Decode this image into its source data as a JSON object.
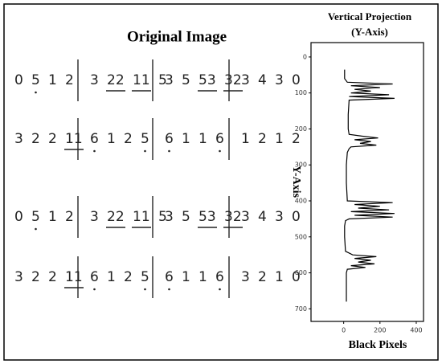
{
  "figure_title": "Original Image",
  "notation": {
    "rows": [
      [
        [
          {
            "t": "0"
          },
          {
            "t": "5",
            "dot": true
          },
          {
            "t": "1"
          },
          {
            "t": "2"
          }
        ],
        [
          {
            "t": "3"
          },
          {
            "t": "22",
            "u": true
          },
          {
            "t": "11",
            "u": true
          },
          {
            "t": "5"
          }
        ],
        [
          {
            "t": "3"
          },
          {
            "t": "5"
          },
          {
            "t": "53",
            "u": true
          },
          {
            "t": "32",
            "u": true
          }
        ],
        [
          {
            "t": "3"
          },
          {
            "t": "4"
          },
          {
            "t": "3"
          },
          {
            "t": "0"
          }
        ]
      ],
      [
        [
          {
            "t": "3"
          },
          {
            "t": "2"
          },
          {
            "t": "2"
          },
          {
            "t": "11",
            "u": true
          }
        ],
        [
          {
            "t": "6",
            "dot": true
          },
          {
            "t": "1"
          },
          {
            "t": "2"
          },
          {
            "t": "5",
            "dot": true
          }
        ],
        [
          {
            "t": "6",
            "dot": true
          },
          {
            "t": "1"
          },
          {
            "t": "1"
          },
          {
            "t": "6",
            "dot": true
          }
        ],
        [
          {
            "t": "1"
          },
          {
            "t": "2"
          },
          {
            "t": "1"
          },
          {
            "t": "2"
          }
        ]
      ],
      [
        [
          {
            "t": "0"
          },
          {
            "t": "5",
            "dot": true
          },
          {
            "t": "1"
          },
          {
            "t": "2"
          }
        ],
        [
          {
            "t": "3"
          },
          {
            "t": "22",
            "u": true
          },
          {
            "t": "11",
            "u": true
          },
          {
            "t": "5"
          }
        ],
        [
          {
            "t": "3"
          },
          {
            "t": "5"
          },
          {
            "t": "53",
            "u": true
          },
          {
            "t": "32",
            "u": true
          }
        ],
        [
          {
            "t": "3"
          },
          {
            "t": "4"
          },
          {
            "t": "3"
          },
          {
            "t": "0"
          }
        ]
      ],
      [
        [
          {
            "t": "3"
          },
          {
            "t": "2"
          },
          {
            "t": "2"
          },
          {
            "t": "11",
            "u": true
          }
        ],
        [
          {
            "t": "6",
            "dot": true
          },
          {
            "t": "1"
          },
          {
            "t": "2"
          },
          {
            "t": "5",
            "dot": true
          }
        ],
        [
          {
            "t": "6",
            "dot": true
          },
          {
            "t": "1"
          },
          {
            "t": "1"
          },
          {
            "t": "6",
            "dot": true
          }
        ],
        [
          {
            "t": "3"
          },
          {
            "t": "2"
          },
          {
            "t": "1"
          },
          {
            "t": "0"
          }
        ]
      ]
    ]
  },
  "chart_data": {
    "type": "line",
    "title": "Vertical Projection",
    "subtitle": "(Y-Axis)",
    "xlabel": "Black Pixels",
    "ylabel": "Y-Axis",
    "color": "#000000",
    "y": [
      35,
      60,
      70,
      75,
      80,
      85,
      90,
      95,
      100,
      105,
      110,
      115,
      120,
      160,
      200,
      215,
      220,
      225,
      230,
      235,
      240,
      245,
      250,
      255,
      265,
      300,
      350,
      400,
      405,
      410,
      415,
      420,
      425,
      430,
      435,
      440,
      445,
      450,
      455,
      470,
      500,
      540,
      550,
      555,
      560,
      565,
      570,
      575,
      580,
      585,
      590,
      600,
      640,
      680
    ],
    "values": [
      5,
      5,
      20,
      270,
      40,
      200,
      60,
      150,
      40,
      250,
      30,
      280,
      30,
      25,
      25,
      30,
      100,
      190,
      60,
      150,
      90,
      180,
      40,
      30,
      20,
      15,
      15,
      20,
      270,
      60,
      200,
      80,
      250,
      40,
      280,
      60,
      270,
      30,
      10,
      5,
      5,
      10,
      50,
      180,
      60,
      150,
      80,
      170,
      40,
      120,
      20,
      15,
      15,
      15
    ],
    "xlim": [
      -180,
      440
    ],
    "xticks": [
      0,
      200,
      400
    ],
    "ylim": [
      -40,
      735
    ],
    "yticks": [
      0,
      100,
      200,
      300,
      400,
      500,
      600,
      700
    ]
  }
}
